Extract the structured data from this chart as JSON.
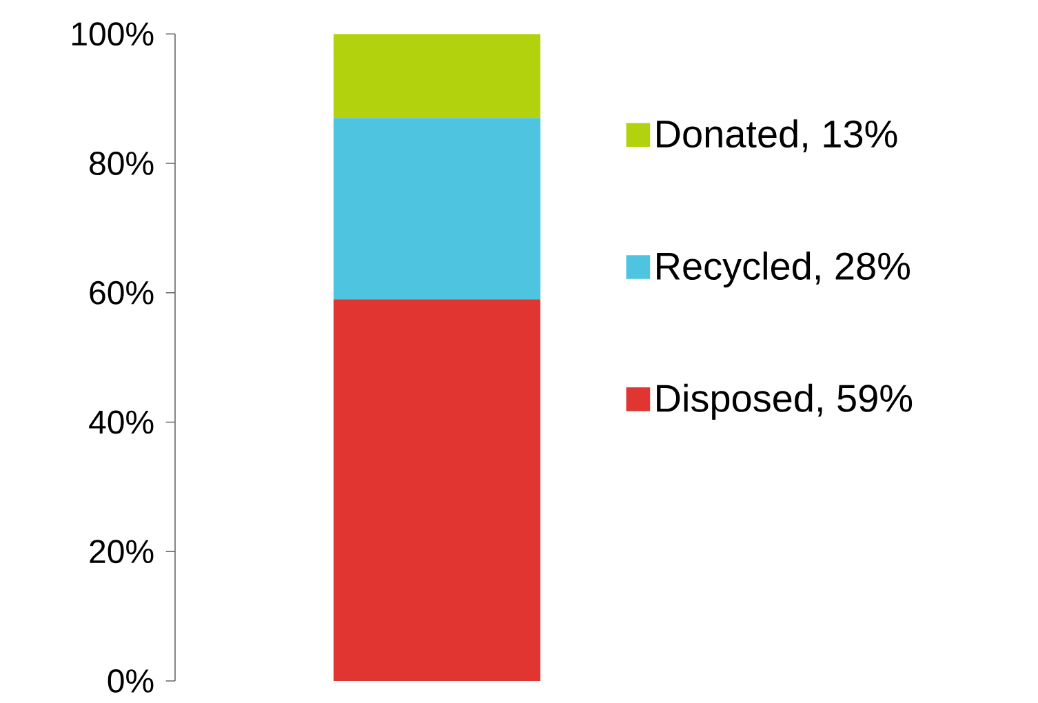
{
  "chart_data": {
    "type": "bar",
    "stacked": true,
    "categories": [
      null
    ],
    "series": [
      {
        "name": "Disposed, 59%",
        "color": "#e03530",
        "values": [
          59
        ]
      },
      {
        "name": "Recycled, 28%",
        "color": "#4ec4e0",
        "values": [
          28
        ]
      },
      {
        "name": "Donated, 13%",
        "color": "#b3d20e",
        "values": [
          13
        ]
      }
    ],
    "ylim": [
      0,
      100
    ],
    "yticks": [
      {
        "value": 0,
        "label": "0%"
      },
      {
        "value": 20,
        "label": "20%"
      },
      {
        "value": 40,
        "label": "40%"
      },
      {
        "value": 60,
        "label": "60%"
      },
      {
        "value": 80,
        "label": "80%"
      },
      {
        "value": 100,
        "label": "100%"
      }
    ],
    "legend": "right"
  }
}
